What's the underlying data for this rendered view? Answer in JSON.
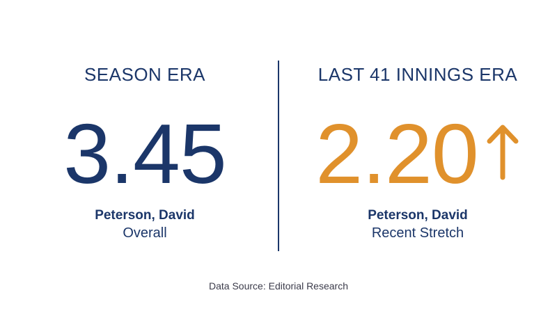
{
  "left": {
    "heading": "SEASON ERA",
    "value": "3.45",
    "player": "Peterson, David",
    "label": "Overall"
  },
  "right": {
    "heading": "LAST 41 INNINGS ERA",
    "value": "2.20",
    "icon": "arrow-up-icon",
    "player": "Peterson, David",
    "label": "Recent Stretch"
  },
  "footer": {
    "source": "Data Source: Editorial Research"
  },
  "colors": {
    "navy": "#1b3669",
    "accent": "#e0912c"
  }
}
